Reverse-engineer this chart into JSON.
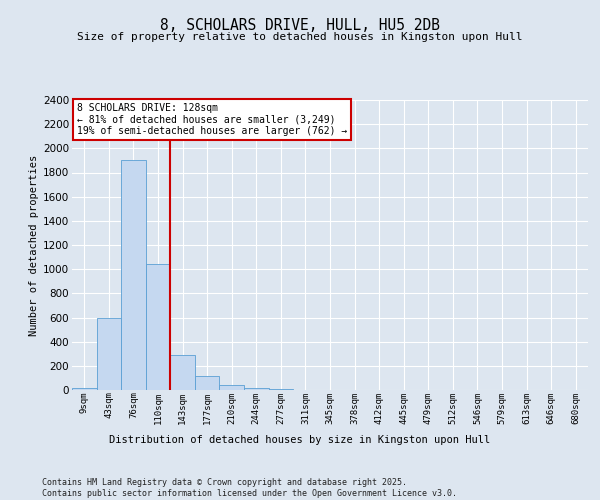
{
  "title": "8, SCHOLARS DRIVE, HULL, HU5 2DB",
  "subtitle": "Size of property relative to detached houses in Kingston upon Hull",
  "xlabel": "Distribution of detached houses by size in Kingston upon Hull",
  "ylabel": "Number of detached properties",
  "footer_line1": "Contains HM Land Registry data © Crown copyright and database right 2025.",
  "footer_line2": "Contains public sector information licensed under the Open Government Licence v3.0.",
  "bin_labels": [
    "9sqm",
    "43sqm",
    "76sqm",
    "110sqm",
    "143sqm",
    "177sqm",
    "210sqm",
    "244sqm",
    "277sqm",
    "311sqm",
    "345sqm",
    "378sqm",
    "412sqm",
    "445sqm",
    "479sqm",
    "512sqm",
    "546sqm",
    "579sqm",
    "613sqm",
    "646sqm",
    "680sqm"
  ],
  "bar_values": [
    15,
    600,
    1900,
    1040,
    290,
    115,
    38,
    18,
    5,
    0,
    0,
    0,
    0,
    0,
    0,
    0,
    0,
    0,
    0,
    0,
    0
  ],
  "bar_color": "#c5d8f0",
  "bar_edge_color": "#5a9fd4",
  "vline_color": "#cc0000",
  "annotation_text": "8 SCHOLARS DRIVE: 128sqm\n← 81% of detached houses are smaller (3,249)\n19% of semi-detached houses are larger (762) →",
  "annotation_box_color": "#ffffff",
  "annotation_box_edge_color": "#cc0000",
  "ylim": [
    0,
    2400
  ],
  "yticks": [
    0,
    200,
    400,
    600,
    800,
    1000,
    1200,
    1400,
    1600,
    1800,
    2000,
    2200,
    2400
  ],
  "background_color": "#dde6f0",
  "grid_color": "#ffffff",
  "figsize": [
    6.0,
    5.0
  ],
  "dpi": 100
}
